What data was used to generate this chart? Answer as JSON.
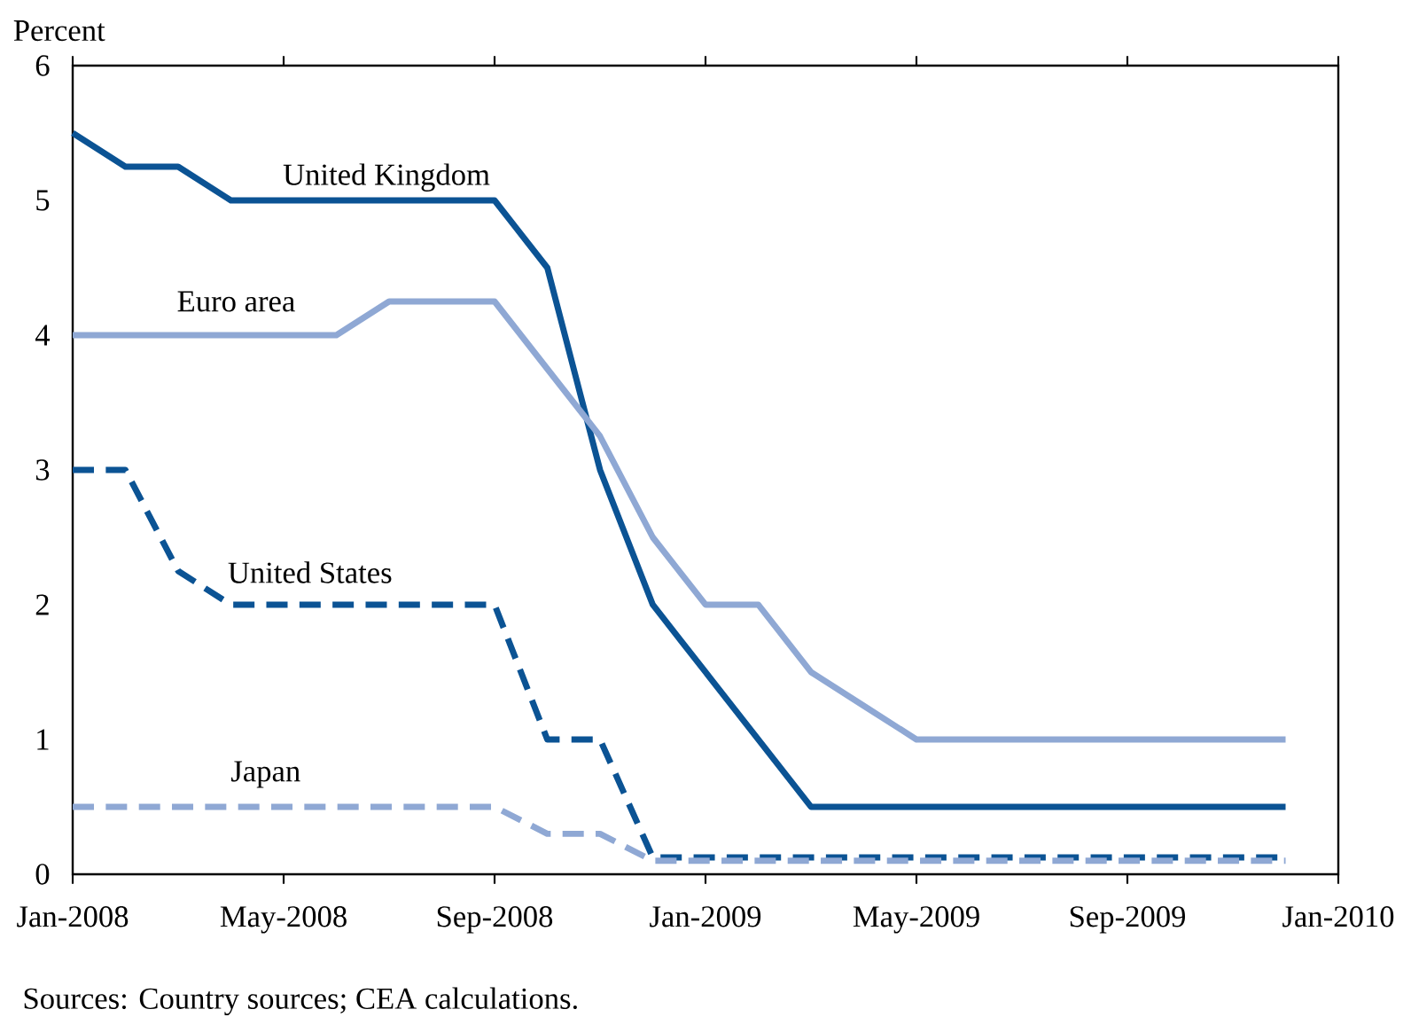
{
  "chart_data": {
    "type": "line",
    "ylabel": "Percent",
    "annotations": [
      "Sources:  Country sources; CEA calculations."
    ],
    "x": [
      "2008-01",
      "2008-02",
      "2008-03",
      "2008-04",
      "2008-05",
      "2008-06",
      "2008-07",
      "2008-08",
      "2008-09",
      "2008-10",
      "2008-11",
      "2008-12",
      "2009-01",
      "2009-02",
      "2009-03",
      "2009-04",
      "2009-05",
      "2009-06",
      "2009-07",
      "2009-08",
      "2009-09",
      "2009-10",
      "2009-11",
      "2009-12"
    ],
    "series": [
      {
        "name": "United Kingdom",
        "color": "#0b5394",
        "line_style": "solid",
        "values": [
          5.5,
          5.25,
          5.25,
          5.0,
          5.0,
          5.0,
          5.0,
          5.0,
          5.0,
          4.5,
          3.0,
          2.0,
          1.5,
          1.0,
          0.5,
          0.5,
          0.5,
          0.5,
          0.5,
          0.5,
          0.5,
          0.5,
          0.5,
          0.5
        ]
      },
      {
        "name": "Euro area",
        "color": "#8fa8d4",
        "line_style": "solid",
        "values": [
          4.0,
          4.0,
          4.0,
          4.0,
          4.0,
          4.0,
          4.25,
          4.25,
          4.25,
          3.75,
          3.25,
          2.5,
          2.0,
          2.0,
          1.5,
          1.25,
          1.0,
          1.0,
          1.0,
          1.0,
          1.0,
          1.0,
          1.0,
          1.0
        ]
      },
      {
        "name": "United States",
        "color": "#0b5394",
        "line_style": "dashed",
        "values": [
          3.0,
          3.0,
          2.25,
          2.0,
          2.0,
          2.0,
          2.0,
          2.0,
          2.0,
          1.0,
          1.0,
          0.125,
          0.125,
          0.125,
          0.125,
          0.125,
          0.125,
          0.125,
          0.125,
          0.125,
          0.125,
          0.125,
          0.125,
          0.125
        ]
      },
      {
        "name": "Japan",
        "color": "#8fa8d4",
        "line_style": "dashed",
        "values": [
          0.5,
          0.5,
          0.5,
          0.5,
          0.5,
          0.5,
          0.5,
          0.5,
          0.5,
          0.3,
          0.3,
          0.1,
          0.1,
          0.1,
          0.1,
          0.1,
          0.1,
          0.1,
          0.1,
          0.1,
          0.1,
          0.1,
          0.1,
          0.1
        ]
      }
    ],
    "xlim": [
      "2008-01",
      "2010-01"
    ],
    "xticks": [
      {
        "value": "2008-01",
        "label": "Jan-2008"
      },
      {
        "value": "2008-05",
        "label": "May-2008"
      },
      {
        "value": "2008-09",
        "label": "Sep-2008"
      },
      {
        "value": "2009-01",
        "label": "Jan-2009"
      },
      {
        "value": "2009-05",
        "label": "May-2009"
      },
      {
        "value": "2009-09",
        "label": "Sep-2009"
      },
      {
        "value": "2010-01",
        "label": "Jan-2010"
      }
    ],
    "ylim": [
      0,
      6
    ],
    "yticks": [
      0,
      1,
      2,
      3,
      4,
      5,
      6
    ],
    "grid": false,
    "legend": false
  }
}
